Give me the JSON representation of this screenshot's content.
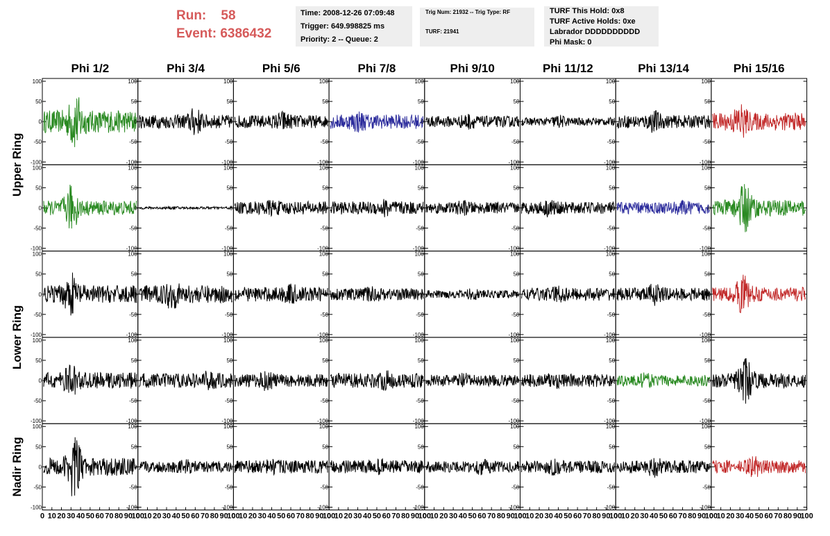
{
  "header": {
    "run_label": "Run:",
    "run_value": "58",
    "event_label": "Event:",
    "event_value": "6386432",
    "time_line": "Time: 2008-12-26 07:09:48",
    "trigger_line": "Trigger: 649.998825 ms",
    "priority_line": "Priority: 2 -- Queue: 2",
    "trig_line": "Trig Num: 21932 -- Trig Type: RF",
    "turf_line": "TURF: 21941",
    "turf_hold_line": "TURF This Hold: 0x8",
    "turf_active_line": "TURF Active Holds: 0xe",
    "labrador_line": "Labrador DDDDDDDDDD",
    "phimask_line": "Phi Mask: 0"
  },
  "colors": {
    "header_red": "#d65a5a",
    "box_gray": "#eeeeee",
    "trace_black": "#000000",
    "trace_green": "#2a8a22",
    "trace_blue": "#2c2c9c",
    "trace_red": "#c22a2a"
  },
  "chart_data": {
    "type": "line",
    "columns": [
      "Phi 1/2",
      "Phi 3/4",
      "Phi 5/6",
      "Phi 7/8",
      "Phi 9/10",
      "Phi 11/12",
      "Phi 13/14",
      "Phi 15/16"
    ],
    "ring_labels": [
      "Upper Ring",
      "Lower Ring",
      "Nadir Ring"
    ],
    "xlim": [
      0,
      100
    ],
    "ylim": [
      -100,
      100
    ],
    "x_ticks": [
      "0",
      "10",
      "20",
      "30",
      "40",
      "50",
      "60",
      "70",
      "80",
      "90",
      "100"
    ],
    "y_ticks": [
      "100",
      "50",
      "0",
      "-50",
      "-100"
    ],
    "grid": false,
    "panels": [
      [
        {
          "color": "green",
          "amp": 28,
          "burst_at": 34,
          "burst_amp": 75
        },
        {
          "color": "black",
          "amp": 17,
          "burst_at": 60,
          "burst_amp": 38
        },
        {
          "color": "black",
          "amp": 16,
          "burst_at": 52,
          "burst_amp": 28
        },
        {
          "color": "blue",
          "amp": 18,
          "burst_at": 30,
          "burst_amp": 30
        },
        {
          "color": "black",
          "amp": 14,
          "burst_at": 45,
          "burst_amp": 22
        },
        {
          "color": "black",
          "amp": 10,
          "burst_at": 40,
          "burst_amp": 18
        },
        {
          "color": "black",
          "amp": 16,
          "burst_at": 40,
          "burst_amp": 30
        },
        {
          "color": "red",
          "amp": 22,
          "burst_at": 30,
          "burst_amp": 50
        }
      ],
      [
        {
          "color": "green",
          "amp": 18,
          "burst_at": 30,
          "burst_amp": 62
        },
        {
          "color": "black",
          "amp": 3,
          "burst_at": 40,
          "burst_amp": 4
        },
        {
          "color": "black",
          "amp": 16,
          "burst_at": 40,
          "burst_amp": 22
        },
        {
          "color": "black",
          "amp": 16,
          "burst_at": 60,
          "burst_amp": 26
        },
        {
          "color": "black",
          "amp": 14,
          "burst_at": 40,
          "burst_amp": 20
        },
        {
          "color": "black",
          "amp": 15,
          "burst_at": 30,
          "burst_amp": 24
        },
        {
          "color": "blue",
          "amp": 15,
          "burst_at": 70,
          "burst_amp": 20
        },
        {
          "color": "green",
          "amp": 20,
          "burst_at": 35,
          "burst_amp": 68
        }
      ],
      [
        {
          "color": "black",
          "amp": 22,
          "burst_at": 30,
          "burst_amp": 55
        },
        {
          "color": "black",
          "amp": 22,
          "burst_at": 35,
          "burst_amp": 40
        },
        {
          "color": "black",
          "amp": 18,
          "burst_at": 60,
          "burst_amp": 28
        },
        {
          "color": "black",
          "amp": 15,
          "burst_at": 45,
          "burst_amp": 22
        },
        {
          "color": "black",
          "amp": 10,
          "burst_at": 50,
          "burst_amp": 16
        },
        {
          "color": "black",
          "amp": 16,
          "burst_at": 40,
          "burst_amp": 24
        },
        {
          "color": "black",
          "amp": 16,
          "burst_at": 40,
          "burst_amp": 30
        },
        {
          "color": "red",
          "amp": 18,
          "burst_at": 33,
          "burst_amp": 55
        }
      ],
      [
        {
          "color": "black",
          "amp": 20,
          "burst_at": 30,
          "burst_amp": 45
        },
        {
          "color": "black",
          "amp": 18,
          "burst_at": 75,
          "burst_amp": 26
        },
        {
          "color": "black",
          "amp": 16,
          "burst_at": 35,
          "burst_amp": 28
        },
        {
          "color": "black",
          "amp": 18,
          "burst_at": 60,
          "burst_amp": 26
        },
        {
          "color": "black",
          "amp": 14,
          "burst_at": 40,
          "burst_amp": 20
        },
        {
          "color": "black",
          "amp": 16,
          "burst_at": 35,
          "burst_amp": 24
        },
        {
          "color": "green",
          "amp": 14,
          "burst_at": 30,
          "burst_amp": 20
        },
        {
          "color": "black",
          "amp": 18,
          "burst_at": 35,
          "burst_amp": 60
        }
      ],
      [
        {
          "color": "black",
          "amp": 22,
          "burst_at": 33,
          "burst_amp": 82
        },
        {
          "color": "black",
          "amp": 14,
          "burst_at": 50,
          "burst_amp": 20
        },
        {
          "color": "black",
          "amp": 16,
          "burst_at": 40,
          "burst_amp": 22
        },
        {
          "color": "black",
          "amp": 16,
          "burst_at": 55,
          "burst_amp": 22
        },
        {
          "color": "black",
          "amp": 14,
          "burst_at": 60,
          "burst_amp": 22
        },
        {
          "color": "black",
          "amp": 15,
          "burst_at": 35,
          "burst_amp": 22
        },
        {
          "color": "black",
          "amp": 16,
          "burst_at": 40,
          "burst_amp": 28
        },
        {
          "color": "red",
          "amp": 16,
          "burst_at": 45,
          "burst_amp": 30
        }
      ]
    ]
  }
}
